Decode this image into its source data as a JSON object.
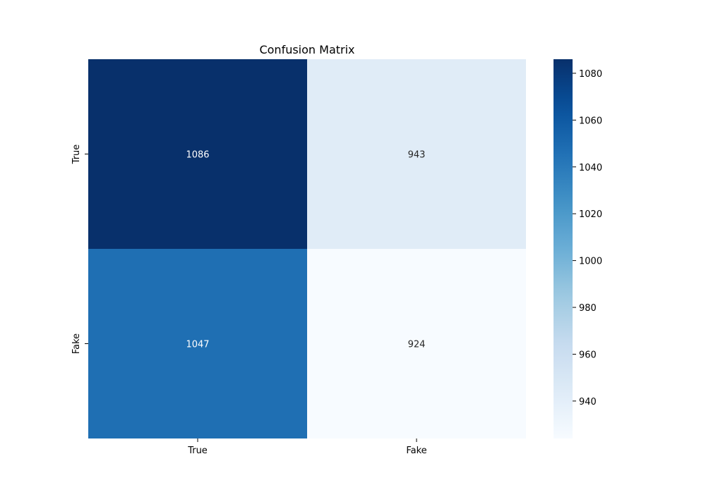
{
  "chart_data": {
    "type": "heatmap",
    "title": "Confusion Matrix",
    "xlabel": "",
    "ylabel": "",
    "x_categories": [
      "True",
      "Fake"
    ],
    "y_categories": [
      "True",
      "Fake"
    ],
    "values": [
      [
        1086,
        943
      ],
      [
        1047,
        924
      ]
    ],
    "annotations": [
      [
        "1086",
        "943"
      ],
      [
        "1047",
        "924"
      ]
    ],
    "colormap": "Blues",
    "colorbar": {
      "min": 924,
      "max": 1086,
      "ticks": [
        940,
        960,
        980,
        1000,
        1020,
        1040,
        1060,
        1080
      ],
      "tick_labels": [
        "940",
        "960",
        "980",
        "1000",
        "1020",
        "1040",
        "1060",
        "1080"
      ]
    },
    "grid": false
  }
}
